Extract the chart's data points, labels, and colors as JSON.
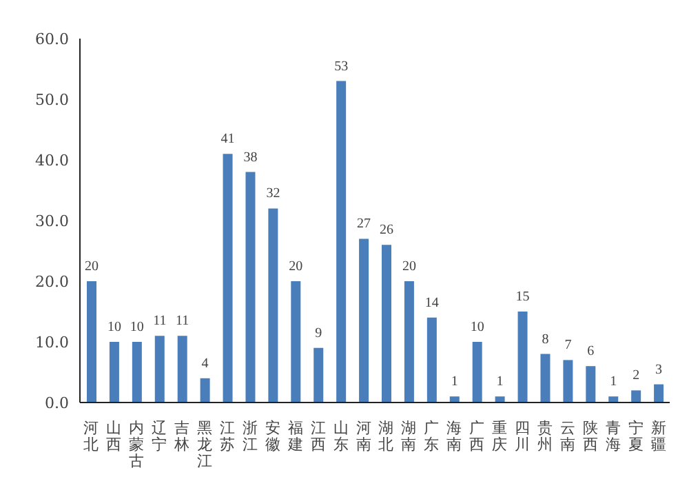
{
  "chart_data": {
    "type": "bar",
    "categories": [
      "河北",
      "山西",
      "内蒙古",
      "辽宁",
      "吉林",
      "黑龙江",
      "江苏",
      "浙江",
      "安徽",
      "福建",
      "江西",
      "山东",
      "河南",
      "湖北",
      "湖南",
      "广东",
      "海南",
      "广西",
      "重庆",
      "四川",
      "贵州",
      "云南",
      "陕西",
      "青海",
      "宁夏",
      "新疆"
    ],
    "values": [
      20,
      10,
      10,
      11,
      11,
      4,
      41,
      38,
      32,
      20,
      9,
      53,
      27,
      26,
      20,
      14,
      1,
      10,
      1,
      15,
      8,
      7,
      6,
      1,
      2,
      3
    ],
    "color": "#4a7ebb",
    "ylim": [
      0,
      60
    ],
    "yticks": [
      {
        "value": 0,
        "label": "0.0"
      },
      {
        "value": 10,
        "label": "10.0"
      },
      {
        "value": 20,
        "label": "20.0"
      },
      {
        "value": 30,
        "label": "30.0"
      },
      {
        "value": 40,
        "label": "40.0"
      },
      {
        "value": 50,
        "label": "50.0"
      },
      {
        "value": 60,
        "label": "60.0"
      }
    ],
    "data_labels": true,
    "grid": false
  }
}
